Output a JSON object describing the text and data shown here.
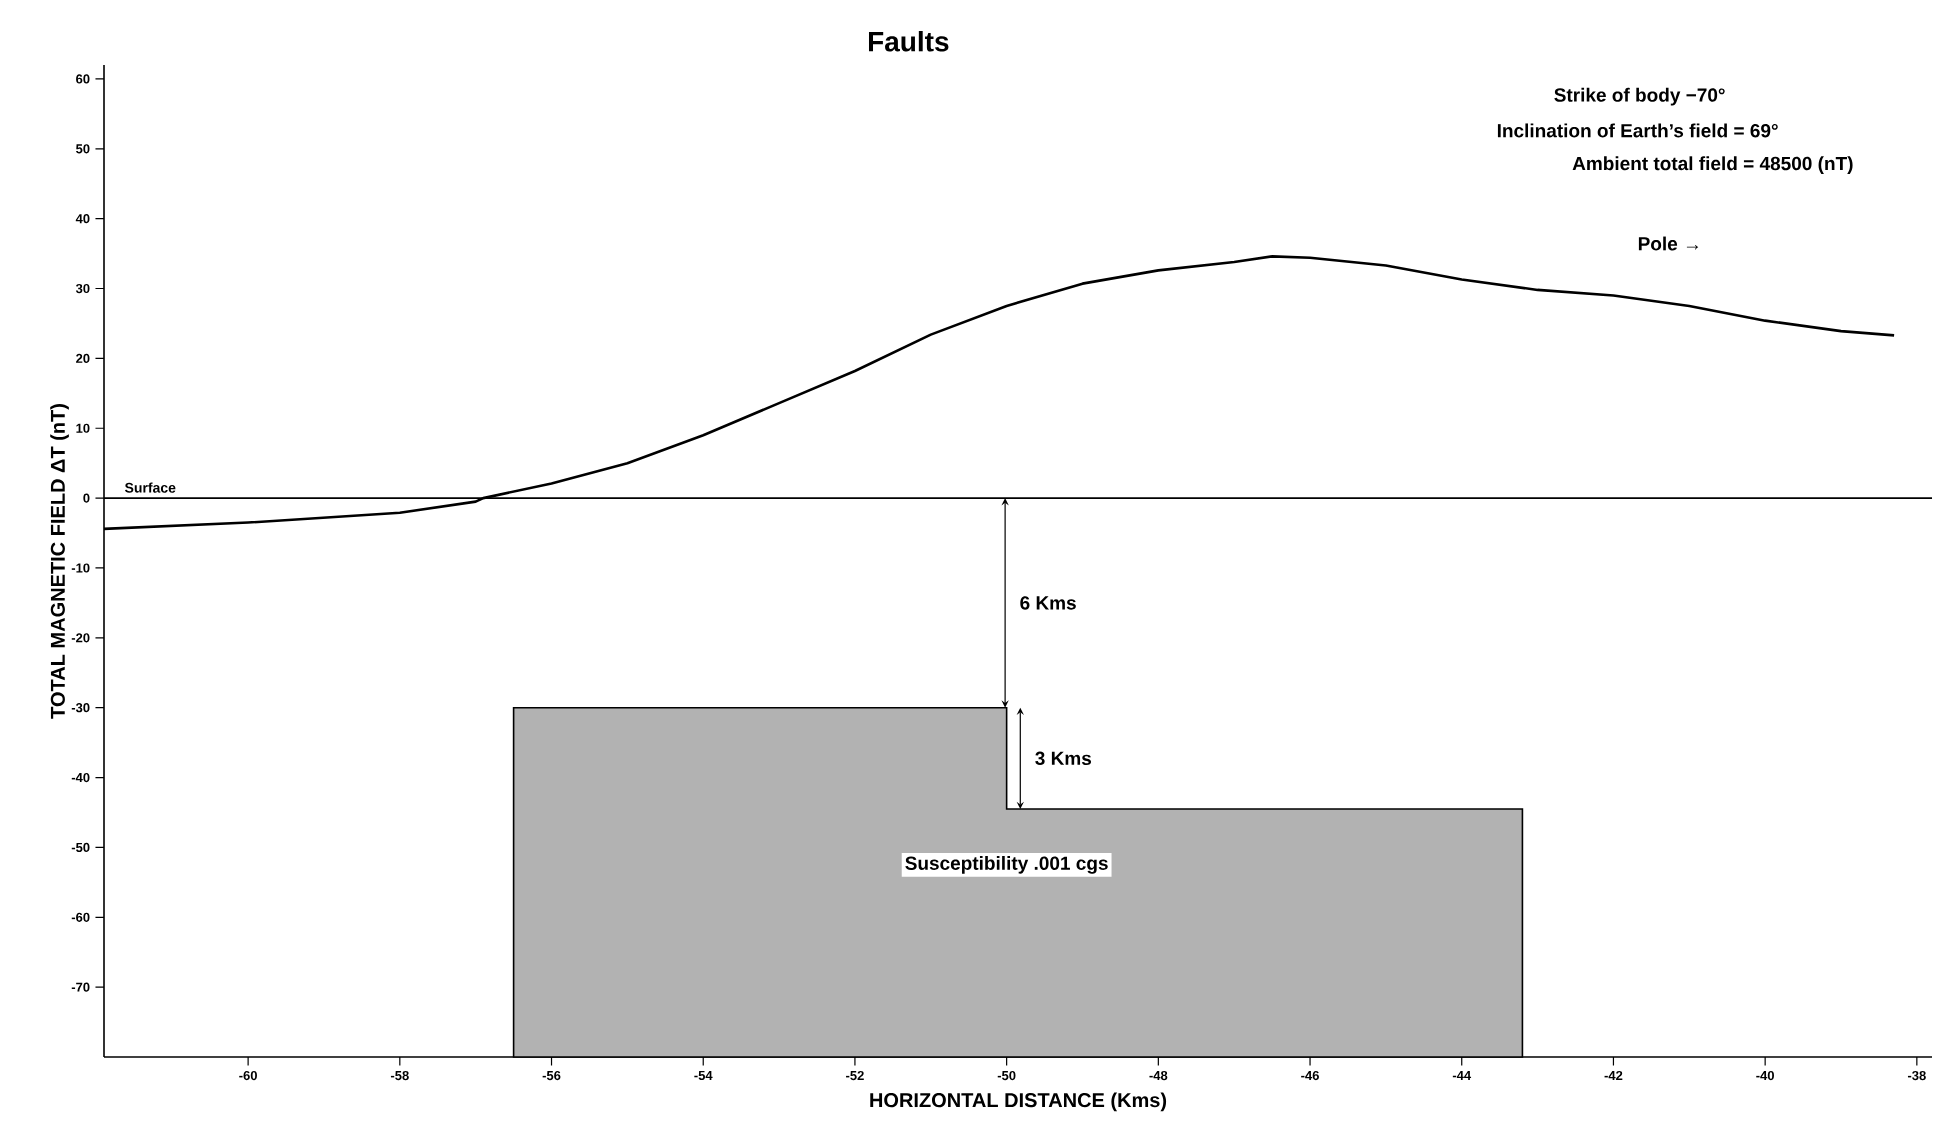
{
  "chart_data": {
    "type": "line",
    "title": "Faults",
    "xlabel": "HORIZONTAL DISTANCE  (Kms)",
    "ylabel": "TOTAL MAGNETIC FIELD  ΔT (nT)",
    "series": [
      {
        "color": "#000000",
        "x": [
          -61.9,
          -60,
          -58,
          -57,
          -56.9,
          -56,
          -55,
          -54,
          -53,
          -52,
          -51,
          -50,
          -49,
          -48,
          -47,
          -46.5,
          -46,
          -45,
          -44,
          -43,
          -42,
          -41,
          -40,
          -39,
          -38.3
        ],
        "values": [
          -4.4,
          -3.5,
          -2.1,
          -0.5,
          0,
          2.1,
          5,
          9,
          13.6,
          18.2,
          23.4,
          27.5,
          30.7,
          32.6,
          33.8,
          34.6,
          34.4,
          33.3,
          31.3,
          29.8,
          29,
          27.5,
          25.4,
          23.9,
          23.3
        ]
      }
    ],
    "xlim": [
      -61.9,
      -37.8
    ],
    "ylim": [
      -80,
      62
    ],
    "xticks": [
      -60,
      -58,
      -56,
      -54,
      -52,
      -50,
      -48,
      -46,
      -44,
      -42,
      -40,
      -38
    ],
    "yticks": [
      60,
      50,
      40,
      30,
      20,
      10,
      0,
      -10,
      -20,
      -30,
      -40,
      -50,
      -60,
      -70
    ],
    "ref_lines": [
      {
        "axis": "y",
        "value": 0,
        "label": "Surface"
      }
    ],
    "marker": "none",
    "line_style": "solid",
    "annotations": [
      "Strike of body −70°",
      "Inclination of Earth’s field = 69°",
      "Ambient  total field = 48500 (nT)",
      "Pole →",
      "6 Kms",
      "3 Kms",
      "Susceptibility .001 cgs"
    ]
  }
}
